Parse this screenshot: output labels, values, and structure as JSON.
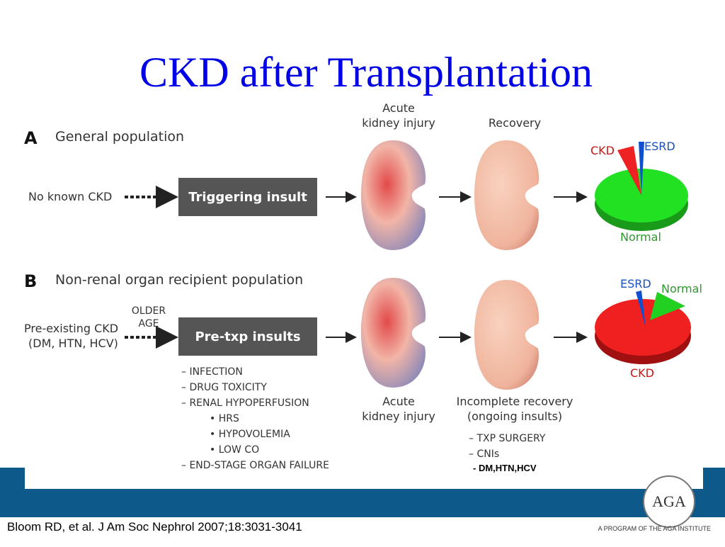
{
  "title": "CKD after Transplantation",
  "panel_a": {
    "letter": "A",
    "heading": "General population",
    "start": "No known CKD",
    "insult": "Triggering insult",
    "aki": [
      "Acute",
      "kidney injury"
    ],
    "recovery": "Recovery",
    "pie": {
      "ckd": "CKD",
      "esrd": "ESRD",
      "normal": "Normal"
    }
  },
  "panel_b": {
    "letter": "B",
    "heading": "Non-renal organ recipient population",
    "start": [
      "Pre-existing CKD",
      "(DM, HTN, HCV)"
    ],
    "risk": [
      "OLDER",
      "AGE"
    ],
    "insult": "Pre-txp insults",
    "insults": [
      "– INFECTION",
      "– DRUG TOXICITY",
      "– RENAL HYPOPERFUSION"
    ],
    "sub_insults": [
      "• HRS",
      "• HYPOVOLEMIA",
      "• LOW CO"
    ],
    "last_insult": "– END-STAGE ORGAN FAILURE",
    "aki": [
      "Acute",
      "kidney injury"
    ],
    "recovery": [
      "Incomplete recovery",
      "(ongoing insults)"
    ],
    "ongoing": [
      "– TXP SURGERY",
      "– CNIs"
    ],
    "extra": "- DM,HTN,HCV",
    "pie": {
      "esrd": "ESRD",
      "normal": "Normal",
      "ckd": "CKD"
    }
  },
  "citation": "Bloom RD, et al. J Am Soc Nephrol 2007;18:3031-3041",
  "logo": "AGA",
  "footer": "A PROGRAM OF THE AGA INSTITUTE"
}
